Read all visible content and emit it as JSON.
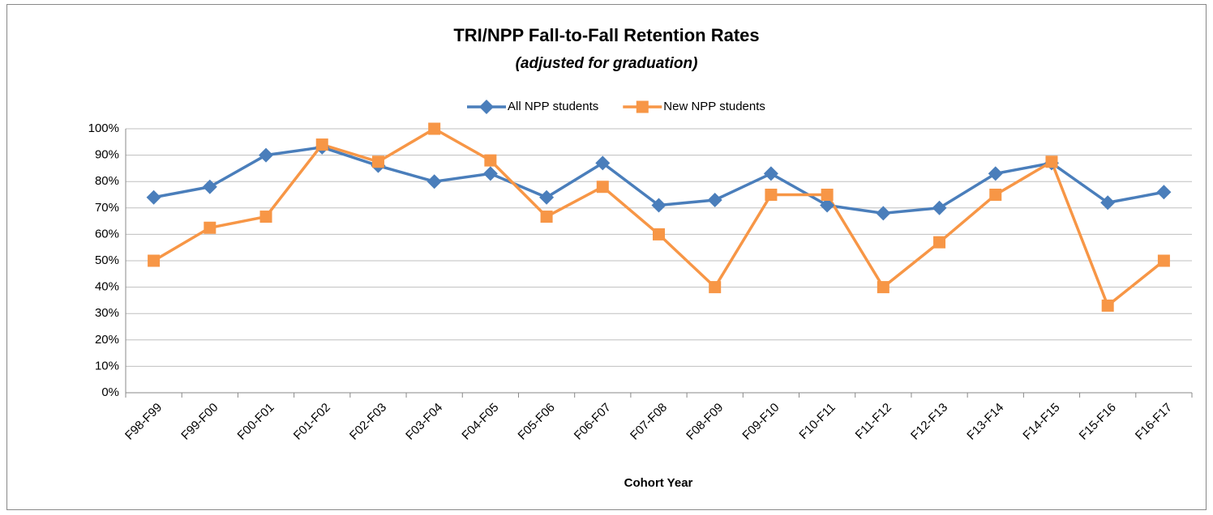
{
  "chart_data": {
    "type": "line",
    "title": "TRI/NPP Fall-to-Fall Retention Rates",
    "subtitle": "(adjusted for graduation)",
    "x_label": "Cohort Year",
    "categories": [
      "F98-F99",
      "F99-F00",
      "F00-F01",
      "F01-F02",
      "F02-F03",
      "F03-F04",
      "F04-F05",
      "F05-F06",
      "F06-F07",
      "F07-F08",
      "F08-F09",
      "F09-F10",
      "F10-F11",
      "F11-F12",
      "F12-F13",
      "F13-F14",
      "F14-F15",
      "F15-F16",
      "F16-F17"
    ],
    "series": [
      {
        "name": "All NPP students",
        "color": "#4a7ebb",
        "marker": "diamond",
        "values": [
          74,
          78,
          90,
          93,
          86,
          80,
          83,
          74,
          87,
          71,
          73,
          83,
          71,
          68,
          70,
          83,
          87,
          72,
          76
        ]
      },
      {
        "name": "New NPP students",
        "color": "#f79646",
        "marker": "square",
        "values": [
          50,
          62.5,
          66.7,
          94,
          87.5,
          100,
          88,
          66.7,
          78,
          60,
          40,
          75,
          75,
          40,
          57,
          75,
          87.5,
          33,
          50
        ]
      }
    ],
    "ylim": [
      0,
      100
    ],
    "yticks": [
      {
        "value": 0,
        "label": "0%"
      },
      {
        "value": 10,
        "label": "10%"
      },
      {
        "value": 20,
        "label": "20%"
      },
      {
        "value": 30,
        "label": "30%"
      },
      {
        "value": 40,
        "label": "40%"
      },
      {
        "value": 50,
        "label": "50%"
      },
      {
        "value": 60,
        "label": "60%"
      },
      {
        "value": 70,
        "label": "70%"
      },
      {
        "value": 80,
        "label": "80%"
      },
      {
        "value": 90,
        "label": "90%"
      },
      {
        "value": 100,
        "label": "100%"
      }
    ],
    "grid": true,
    "legend": "top"
  }
}
